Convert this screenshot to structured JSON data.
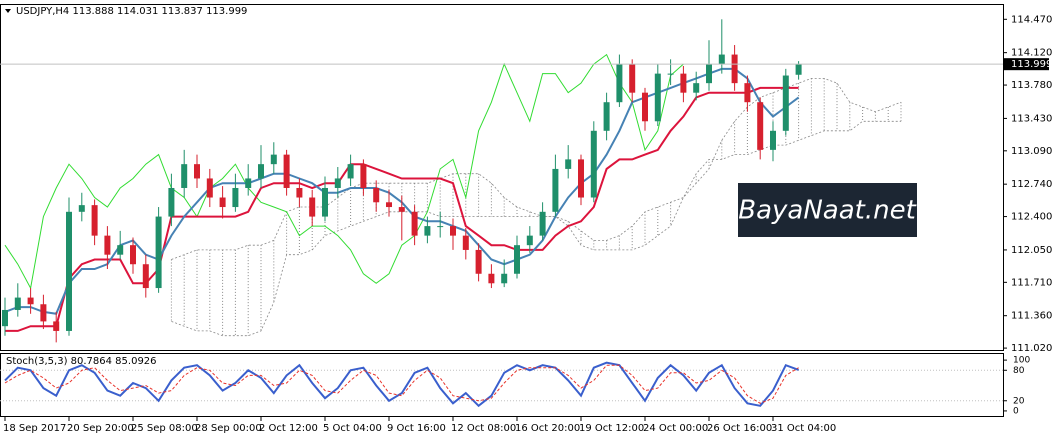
{
  "chart_data": [
    {
      "type": "candlestick",
      "title": "USDJPY,H4  113.888 114.031 113.837 113.999",
      "categories": [
        "18 Sep 2017",
        null,
        null,
        null,
        null,
        "20 Sep 20:00",
        null,
        null,
        null,
        null,
        "25 Sep 08:00",
        null,
        null,
        null,
        null,
        "28 Sep 00:00",
        null,
        null,
        null,
        null,
        "2 Oct 12:00",
        null,
        null,
        null,
        null,
        "5 Oct 04:00",
        null,
        null,
        null,
        null,
        "9 Oct 16:00",
        null,
        null,
        null,
        null,
        "12 Oct 08:00",
        null,
        null,
        null,
        null,
        "16 Oct 20:00",
        null,
        null,
        null,
        null,
        "19 Oct 12:00",
        null,
        null,
        null,
        null,
        "24 Oct 00:00",
        null,
        null,
        null,
        null,
        "26 Oct 16:00",
        null,
        null,
        null,
        null,
        "31 Oct 04:00",
        null,
        null,
        null,
        null,
        null,
        null,
        null,
        null,
        null,
        null
      ],
      "open": [
        111.25,
        111.42,
        111.55,
        111.48,
        111.3,
        111.2,
        112.45,
        112.52,
        112.2,
        112.0,
        112.1,
        111.9,
        111.65,
        112.4,
        112.7,
        112.95,
        112.8,
        112.6,
        112.5,
        112.7,
        112.8,
        112.95,
        113.05,
        112.7,
        112.6,
        112.4,
        112.7,
        112.8,
        112.95,
        112.7,
        112.55,
        112.5,
        112.45,
        112.2,
        112.3,
        112.3,
        112.2,
        112.05,
        111.8,
        111.7,
        111.8,
        112.1,
        112.2,
        112.45,
        112.9,
        113.0,
        112.6,
        113.3,
        113.6,
        114.0,
        113.7,
        113.4,
        113.9,
        113.9,
        113.7,
        113.8,
        114.0,
        114.1,
        113.8,
        113.6,
        113.1,
        113.3,
        113.888,
        null,
        null,
        null,
        null,
        null,
        null,
        null,
        null
      ],
      "high": [
        111.55,
        111.7,
        111.65,
        111.58,
        111.4,
        112.6,
        112.65,
        112.58,
        112.3,
        112.25,
        112.18,
        112.0,
        112.5,
        112.85,
        113.1,
        113.05,
        112.9,
        112.72,
        112.85,
        112.95,
        113.15,
        113.18,
        113.1,
        112.8,
        112.68,
        112.82,
        112.92,
        113.05,
        113.0,
        112.78,
        112.68,
        112.62,
        112.52,
        112.4,
        112.45,
        112.38,
        112.28,
        112.12,
        111.9,
        111.95,
        112.2,
        112.3,
        112.55,
        113.05,
        113.15,
        113.05,
        113.4,
        113.7,
        114.1,
        114.05,
        113.75,
        114.0,
        114.05,
        113.98,
        113.92,
        114.25,
        114.47,
        114.2,
        113.88,
        113.65,
        113.4,
        113.95,
        114.031,
        null,
        null,
        null,
        null,
        null,
        null,
        null,
        null
      ],
      "low": [
        111.15,
        111.35,
        111.38,
        111.22,
        111.08,
        111.15,
        112.35,
        112.1,
        111.85,
        111.95,
        111.8,
        111.55,
        111.6,
        112.3,
        112.6,
        112.7,
        112.5,
        112.38,
        112.45,
        112.62,
        112.7,
        112.85,
        112.62,
        112.5,
        112.3,
        112.35,
        112.6,
        112.72,
        112.62,
        112.45,
        112.4,
        112.15,
        112.1,
        112.12,
        112.18,
        112.05,
        111.95,
        111.72,
        111.65,
        111.66,
        111.75,
        112.02,
        112.15,
        112.4,
        112.8,
        112.52,
        112.55,
        113.2,
        113.55,
        113.6,
        113.3,
        113.35,
        113.78,
        113.6,
        113.62,
        113.72,
        113.9,
        113.72,
        113.5,
        113.0,
        112.98,
        113.25,
        113.837,
        null,
        null,
        null,
        null,
        null,
        null,
        null,
        null
      ],
      "close": [
        111.42,
        111.55,
        111.48,
        111.3,
        111.2,
        112.45,
        112.52,
        112.2,
        112.0,
        112.1,
        111.9,
        111.65,
        112.4,
        112.7,
        112.95,
        112.8,
        112.6,
        112.5,
        112.7,
        112.8,
        112.95,
        113.05,
        112.7,
        112.6,
        112.4,
        112.7,
        112.8,
        112.95,
        112.7,
        112.55,
        112.5,
        112.45,
        112.2,
        112.3,
        112.3,
        112.2,
        112.05,
        111.8,
        111.7,
        111.8,
        112.1,
        112.2,
        112.45,
        112.9,
        113.0,
        112.6,
        113.3,
        113.6,
        114.0,
        113.7,
        113.4,
        113.9,
        113.9,
        113.7,
        113.8,
        114.0,
        114.1,
        113.8,
        113.6,
        113.1,
        113.3,
        113.88,
        113.999,
        null,
        null,
        null,
        null,
        null,
        null,
        null,
        null
      ],
      "up_color": "#1f8f6a",
      "down_color": "#d6202e",
      "cloud": {
        "color": "#888888",
        "span_a": [
          null,
          null,
          null,
          null,
          null,
          null,
          null,
          null,
          null,
          null,
          null,
          null,
          null,
          111.95,
          112.0,
          112.05,
          112.05,
          112.05,
          112.05,
          112.1,
          112.1,
          112.15,
          112.45,
          112.5,
          112.5,
          112.5,
          112.6,
          112.7,
          112.75,
          112.75,
          112.75,
          112.75,
          112.75,
          112.75,
          112.8,
          112.85,
          112.85,
          112.85,
          112.75,
          112.6,
          112.5,
          112.45,
          112.4,
          112.4,
          112.35,
          112.25,
          112.15,
          112.15,
          112.2,
          112.3,
          112.45,
          112.5,
          112.55,
          112.6,
          112.75,
          112.9,
          113.2,
          113.4,
          113.55,
          113.65,
          113.7,
          113.75,
          113.8,
          113.85,
          113.85,
          113.8,
          113.6,
          113.55,
          113.5,
          113.55,
          113.6
        ],
        "span_b": [
          null,
          null,
          null,
          null,
          null,
          null,
          null,
          null,
          null,
          null,
          null,
          null,
          null,
          111.3,
          111.25,
          111.2,
          111.2,
          111.15,
          111.15,
          111.15,
          111.2,
          111.5,
          112.0,
          112.0,
          112.05,
          112.2,
          112.25,
          112.3,
          112.35,
          112.4,
          112.45,
          112.45,
          112.45,
          112.45,
          112.4,
          112.4,
          112.4,
          112.4,
          112.4,
          112.4,
          112.4,
          112.4,
          112.4,
          112.4,
          112.3,
          112.1,
          112.05,
          112.05,
          112.05,
          112.05,
          112.1,
          112.2,
          112.3,
          112.6,
          112.85,
          113.0,
          113.0,
          113.05,
          113.05,
          113.1,
          113.15,
          113.15,
          113.2,
          113.25,
          113.3,
          113.3,
          113.3,
          113.4,
          113.4,
          113.4,
          113.4
        ]
      },
      "lines": [
        {
          "color": "#32dc32",
          "values": [
            112.1,
            111.9,
            111.65,
            112.4,
            112.7,
            112.95,
            112.8,
            112.6,
            112.5,
            112.7,
            112.8,
            112.95,
            113.05,
            112.7,
            112.6,
            112.4,
            112.7,
            112.8,
            112.95,
            112.7,
            112.55,
            112.5,
            112.45,
            112.2,
            112.3,
            112.3,
            112.2,
            112.05,
            111.8,
            111.7,
            111.8,
            112.1,
            112.2,
            112.45,
            112.9,
            113.0,
            112.6,
            113.3,
            113.6,
            114.0,
            113.7,
            113.4,
            113.9,
            113.9,
            113.7,
            113.8,
            114.0,
            114.1,
            113.8,
            113.6,
            113.1,
            113.3,
            113.88,
            114.0,
            null,
            null,
            null,
            null,
            null,
            null,
            null,
            null,
            null,
            null,
            null,
            null,
            null,
            null,
            null,
            null,
            null
          ]
        },
        {
          "color": "#dc143c",
          "values": [
            111.2,
            111.2,
            111.25,
            111.25,
            111.25,
            111.75,
            111.9,
            111.95,
            111.95,
            111.95,
            111.7,
            111.7,
            111.85,
            112.4,
            112.4,
            112.4,
            112.4,
            112.4,
            112.4,
            112.45,
            112.7,
            112.75,
            112.75,
            112.75,
            112.7,
            112.75,
            112.75,
            112.95,
            112.95,
            112.9,
            112.85,
            112.8,
            112.8,
            112.8,
            112.8,
            112.75,
            112.3,
            112.2,
            112.1,
            112.1,
            112.05,
            112.05,
            112.05,
            112.2,
            112.3,
            112.35,
            112.5,
            112.9,
            113.0,
            113.0,
            113.05,
            113.1,
            113.3,
            113.45,
            113.65,
            113.7,
            113.7,
            113.7,
            113.7,
            113.75,
            113.75,
            113.75,
            113.75,
            null,
            null,
            null,
            null,
            null,
            null,
            null,
            null
          ]
        },
        {
          "color": "#4682b4",
          "values": [
            111.4,
            111.45,
            111.45,
            111.4,
            111.38,
            111.7,
            111.85,
            111.85,
            111.9,
            112.1,
            112.15,
            112.0,
            111.95,
            112.2,
            112.4,
            112.55,
            112.7,
            112.75,
            112.75,
            112.75,
            112.8,
            112.85,
            112.85,
            112.8,
            112.75,
            112.65,
            112.65,
            112.7,
            112.7,
            112.7,
            112.65,
            112.55,
            112.4,
            112.35,
            112.35,
            112.3,
            112.25,
            112.1,
            111.95,
            111.9,
            111.95,
            112.0,
            112.15,
            112.4,
            112.6,
            112.75,
            112.85,
            113.05,
            113.3,
            113.6,
            113.65,
            113.7,
            113.75,
            113.8,
            113.85,
            113.9,
            113.95,
            113.95,
            113.85,
            113.6,
            113.45,
            113.55,
            113.65,
            null,
            null,
            null,
            null,
            null,
            null,
            null,
            null
          ]
        }
      ],
      "last_price": 113.999,
      "ylim": [
        111.0,
        114.62
      ],
      "yticks": [
        {
          "value": 114.47,
          "label": "114.470"
        },
        {
          "value": 114.12,
          "label": "114.120"
        },
        {
          "value": 113.78,
          "label": "113.780"
        },
        {
          "value": 113.43,
          "label": "113.430"
        },
        {
          "value": 113.09,
          "label": "113.090"
        },
        {
          "value": 112.74,
          "label": "112.740"
        },
        {
          "value": 112.4,
          "label": "112.400"
        },
        {
          "value": 112.05,
          "label": "112.050"
        },
        {
          "value": 111.71,
          "label": "111.710"
        },
        {
          "value": 111.36,
          "label": "111.360"
        },
        {
          "value": 111.02,
          "label": "111.020"
        }
      ],
      "watermark": "BayaNaat.net"
    },
    {
      "type": "stochastic",
      "title": "Stoch(3,5,3) 80.7864 85.0926",
      "series": [
        {
          "color": "#3a5fcd",
          "values": [
            60,
            85,
            80,
            45,
            30,
            80,
            90,
            75,
            40,
            30,
            55,
            45,
            20,
            60,
            85,
            90,
            70,
            40,
            55,
            80,
            65,
            35,
            70,
            90,
            55,
            25,
            45,
            80,
            85,
            50,
            20,
            35,
            75,
            85,
            45,
            15,
            35,
            10,
            30,
            75,
            90,
            80,
            90,
            85,
            60,
            30,
            85,
            95,
            90,
            55,
            20,
            65,
            90,
            70,
            40,
            75,
            90,
            45,
            15,
            10,
            40,
            90,
            80.7864
          ]
        },
        {
          "color": "#e8322a",
          "dashed": true,
          "values": [
            55,
            70,
            80,
            65,
            45,
            55,
            80,
            85,
            60,
            40,
            45,
            50,
            35,
            40,
            70,
            85,
            80,
            55,
            50,
            70,
            70,
            50,
            55,
            80,
            70,
            40,
            35,
            60,
            80,
            70,
            35,
            30,
            60,
            80,
            65,
            30,
            25,
            20,
            25,
            55,
            80,
            85,
            85,
            85,
            70,
            45,
            60,
            90,
            90,
            70,
            40,
            45,
            75,
            75,
            55,
            60,
            80,
            65,
            30,
            15,
            25,
            70,
            85.0926
          ]
        }
      ],
      "ylim": [
        -10,
        114
      ],
      "yticks": [
        100,
        80,
        20,
        0
      ]
    }
  ]
}
